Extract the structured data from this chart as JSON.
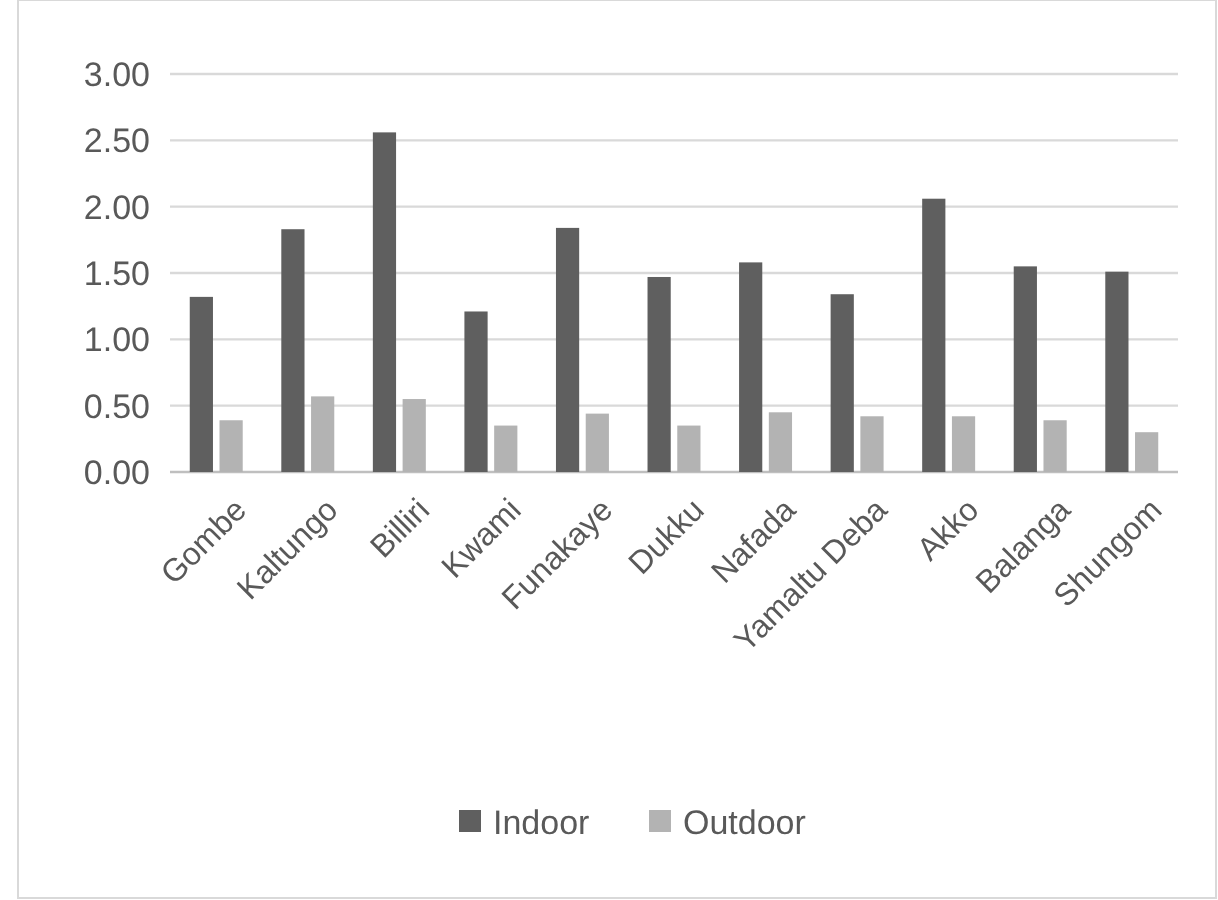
{
  "chart_data": {
    "type": "bar",
    "categories": [
      "Gombe",
      "Kaltungo",
      "Billiri",
      "Kwami",
      "Funakaye",
      "Dukku",
      "Nafada",
      "Yamaltu Deba",
      "Akko",
      "Balanga",
      "Shungom"
    ],
    "series": [
      {
        "name": "Indoor",
        "color": "#5f5f5f",
        "values": [
          1.32,
          1.83,
          2.56,
          1.21,
          1.84,
          1.47,
          1.58,
          1.34,
          2.06,
          1.55,
          1.51
        ]
      },
      {
        "name": "Outdoor",
        "color": "#b3b3b3",
        "values": [
          0.39,
          0.57,
          0.55,
          0.35,
          0.44,
          0.35,
          0.45,
          0.42,
          0.42,
          0.39,
          0.3
        ]
      }
    ],
    "ylim": [
      0,
      3
    ],
    "yticks": [
      {
        "value": 0,
        "label": "0.00"
      },
      {
        "value": 0.5,
        "label": "0.50"
      },
      {
        "value": 1,
        "label": "1.00"
      },
      {
        "value": 1.5,
        "label": "1.50"
      },
      {
        "value": 2,
        "label": "2.00"
      },
      {
        "value": 2.5,
        "label": "2.50"
      },
      {
        "value": 3,
        "label": "3.00"
      }
    ],
    "grid": "y",
    "legend": "bottom"
  }
}
